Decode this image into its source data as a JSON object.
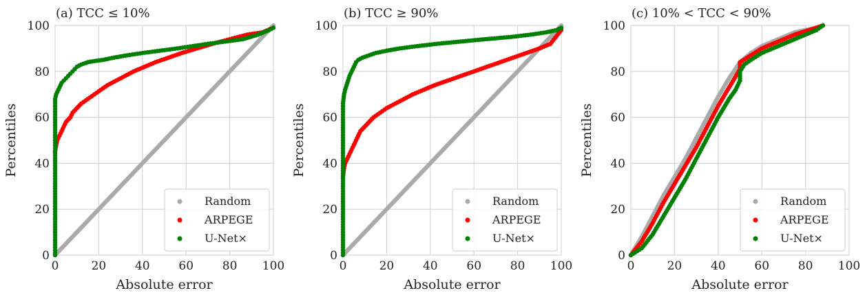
{
  "chart_data": [
    {
      "type": "scatter",
      "title": "(a) TCC ≤ 10%",
      "xlabel": "Absolute error",
      "ylabel": "Percentiles",
      "xlim": [
        0,
        100
      ],
      "ylim": [
        0,
        100
      ],
      "xticks": [
        0,
        20,
        40,
        60,
        80,
        100
      ],
      "yticks": [
        0,
        20,
        40,
        60,
        80,
        100
      ],
      "grid": true,
      "legend_position": "lower-right",
      "series": [
        {
          "name": "Random",
          "color": "#aaaaaa",
          "points": [
            [
              0,
              0
            ],
            [
              48,
              48
            ],
            [
              50,
              50
            ],
            [
              100,
              100
            ]
          ]
        },
        {
          "name": "ARPEGE",
          "color": "#ff0000",
          "points": [
            [
              0,
              45
            ],
            [
              0.5,
              48
            ],
            [
              1,
              50
            ],
            [
              2,
              52
            ],
            [
              3,
              54
            ],
            [
              4,
              56
            ],
            [
              5,
              58
            ],
            [
              7,
              60
            ],
            [
              8,
              62
            ],
            [
              10,
              64
            ],
            [
              12,
              66
            ],
            [
              15,
              68
            ],
            [
              18,
              70
            ],
            [
              21,
              72
            ],
            [
              24,
              74
            ],
            [
              28,
              76
            ],
            [
              32,
              78
            ],
            [
              36,
              80
            ],
            [
              41,
              82
            ],
            [
              46,
              84
            ],
            [
              52,
              86
            ],
            [
              58,
              88
            ],
            [
              65,
              90
            ],
            [
              72,
              92
            ],
            [
              80,
              94
            ],
            [
              88,
              96
            ],
            [
              95,
              97
            ],
            [
              100,
              99
            ]
          ]
        },
        {
          "name": "U-Net×",
          "color": "#008000",
          "points": [
            [
              0,
              0
            ],
            [
              0,
              20
            ],
            [
              0,
              40
            ],
            [
              0,
              60
            ],
            [
              0,
              66
            ],
            [
              0,
              68
            ],
            [
              0.5,
              70
            ],
            [
              1,
              71
            ],
            [
              1.5,
              72
            ],
            [
              2,
              73
            ],
            [
              3,
              75
            ],
            [
              4,
              76
            ],
            [
              5,
              77
            ],
            [
              6,
              78
            ],
            [
              7,
              79
            ],
            [
              8,
              80
            ],
            [
              9,
              81
            ],
            [
              10,
              82
            ],
            [
              12,
              83
            ],
            [
              15,
              84
            ],
            [
              18,
              84.5
            ],
            [
              22,
              85
            ],
            [
              27,
              86
            ],
            [
              33,
              87
            ],
            [
              40,
              88
            ],
            [
              48,
              89
            ],
            [
              56,
              90
            ],
            [
              63,
              91
            ],
            [
              70,
              92
            ],
            [
              78,
              93
            ],
            [
              86,
              94
            ],
            [
              93,
              96
            ],
            [
              98,
              98
            ],
            [
              100,
              99
            ]
          ]
        }
      ]
    },
    {
      "type": "scatter",
      "title": "(b) TCC ≥ 90%",
      "xlabel": "Absolute error",
      "ylabel": "Percentiles",
      "xlim": [
        0,
        100
      ],
      "ylim": [
        0,
        100
      ],
      "xticks": [
        0,
        20,
        40,
        60,
        80,
        100
      ],
      "yticks": [
        0,
        20,
        40,
        60,
        80,
        100
      ],
      "grid": true,
      "legend_position": "lower-right",
      "series": [
        {
          "name": "Random",
          "color": "#aaaaaa",
          "points": [
            [
              0,
              0
            ],
            [
              61,
              61
            ],
            [
              63,
              63
            ],
            [
              100,
              100
            ]
          ]
        },
        {
          "name": "ARPEGE",
          "color": "#ff0000",
          "points": [
            [
              0,
              34
            ],
            [
              0.5,
              38
            ],
            [
              1,
              40
            ],
            [
              2,
              42
            ],
            [
              3,
              44
            ],
            [
              4,
              46
            ],
            [
              5,
              48
            ],
            [
              6,
              50
            ],
            [
              7,
              52
            ],
            [
              8,
              54
            ],
            [
              10,
              56
            ],
            [
              12,
              58
            ],
            [
              14,
              60
            ],
            [
              17,
              62
            ],
            [
              20,
              64
            ],
            [
              24,
              66
            ],
            [
              28,
              68
            ],
            [
              32,
              70
            ],
            [
              37,
              72
            ],
            [
              42,
              74
            ],
            [
              48,
              76
            ],
            [
              54,
              78
            ],
            [
              60,
              80
            ],
            [
              66,
              82
            ],
            [
              72,
              84
            ],
            [
              78,
              86
            ],
            [
              84,
              88
            ],
            [
              90,
              90
            ],
            [
              95,
              92
            ],
            [
              100,
              98
            ]
          ]
        },
        {
          "name": "U-Net×",
          "color": "#008000",
          "points": [
            [
              0,
              0
            ],
            [
              0,
              20
            ],
            [
              0,
              40
            ],
            [
              0,
              60
            ],
            [
              0,
              66
            ],
            [
              0.5,
              70
            ],
            [
              1,
              72
            ],
            [
              2,
              75
            ],
            [
              3,
              78
            ],
            [
              4,
              80
            ],
            [
              5,
              82
            ],
            [
              6,
              84
            ],
            [
              7,
              85
            ],
            [
              9,
              86
            ],
            [
              12,
              87
            ],
            [
              15,
              88
            ],
            [
              20,
              89
            ],
            [
              26,
              90
            ],
            [
              34,
              91
            ],
            [
              43,
              92
            ],
            [
              54,
              93
            ],
            [
              65,
              94
            ],
            [
              77,
              95
            ],
            [
              86,
              96
            ],
            [
              93,
              97
            ],
            [
              98,
              98
            ],
            [
              100,
              99
            ]
          ]
        }
      ]
    },
    {
      "type": "scatter",
      "title": "(c) 10% < TCC < 90%",
      "xlabel": "Absolute error",
      "ylabel": "Percentiles",
      "xlim": [
        0,
        100
      ],
      "ylim": [
        0,
        100
      ],
      "xticks": [
        0,
        20,
        40,
        60,
        80,
        100
      ],
      "yticks": [
        0,
        20,
        40,
        60,
        80,
        100
      ],
      "grid": true,
      "legend_position": "lower-right",
      "series": [
        {
          "name": "Random",
          "color": "#aaaaaa",
          "points": [
            [
              0,
              0
            ],
            [
              5,
              8
            ],
            [
              10,
              17
            ],
            [
              15,
              26
            ],
            [
              20,
              34
            ],
            [
              25,
              42
            ],
            [
              30,
              51
            ],
            [
              35,
              60
            ],
            [
              40,
              69
            ],
            [
              45,
              77
            ],
            [
              50,
              84
            ],
            [
              55,
              88
            ],
            [
              60,
              91
            ],
            [
              65,
              93
            ],
            [
              70,
              95
            ],
            [
              75,
              97
            ],
            [
              80,
              98
            ],
            [
              85,
              99
            ],
            [
              88,
              100
            ]
          ]
        },
        {
          "name": "ARPEGE",
          "color": "#ff0000",
          "points": [
            [
              0,
              0
            ],
            [
              5,
              6
            ],
            [
              10,
              14
            ],
            [
              15,
              23
            ],
            [
              20,
              31
            ],
            [
              25,
              39
            ],
            [
              30,
              47
            ],
            [
              35,
              56
            ],
            [
              40,
              65
            ],
            [
              45,
              73
            ],
            [
              50,
              81
            ],
            [
              50,
              84
            ],
            [
              55,
              87
            ],
            [
              60,
              90
            ],
            [
              65,
              92
            ],
            [
              70,
              94
            ],
            [
              75,
              96
            ],
            [
              80,
              97.5
            ],
            [
              85,
              99
            ],
            [
              88,
              100
            ]
          ]
        },
        {
          "name": "U-Net×",
          "color": "#008000",
          "points": [
            [
              0,
              0
            ],
            [
              5,
              3
            ],
            [
              10,
              9
            ],
            [
              15,
              17
            ],
            [
              20,
              25
            ],
            [
              25,
              33
            ],
            [
              30,
              42
            ],
            [
              35,
              51
            ],
            [
              40,
              60
            ],
            [
              45,
              68
            ],
            [
              48,
              72
            ],
            [
              50,
              76
            ],
            [
              50,
              80
            ],
            [
              52,
              83
            ],
            [
              55,
              85
            ],
            [
              60,
              88
            ],
            [
              65,
              90
            ],
            [
              70,
              92
            ],
            [
              75,
              94
            ],
            [
              80,
              96
            ],
            [
              85,
              98
            ],
            [
              88,
              100
            ]
          ]
        }
      ]
    }
  ]
}
